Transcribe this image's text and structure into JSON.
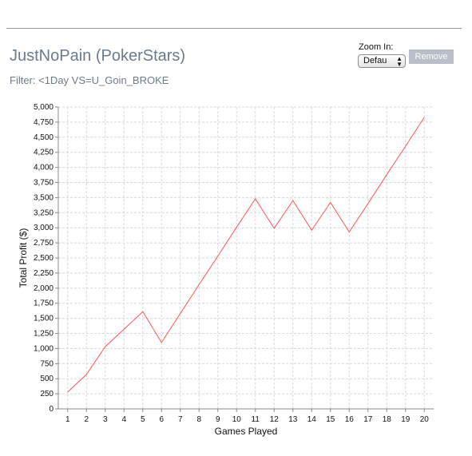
{
  "header": {
    "title": "JustNoPain (PokerStars)",
    "filter": "Filter: <1Day VS=U_Goin_BROKE"
  },
  "controls": {
    "zoom_label": "Zoom In:",
    "zoom_value": "Defau",
    "remove_label": "Remove"
  },
  "colors": {
    "line": "#ff5555",
    "grid": "#d8d8d8"
  },
  "chart_data": {
    "type": "line",
    "xlabel": "Games Played",
    "ylabel": "Total Profit ($)",
    "x": [
      1,
      2,
      3,
      4,
      5,
      6,
      7,
      8,
      9,
      10,
      11,
      12,
      13,
      14,
      15,
      16,
      17,
      18,
      19,
      20
    ],
    "series": [
      {
        "values": [
          280,
          570,
          1030,
          1320,
          1610,
          1100,
          1580,
          2060,
          2530,
          3010,
          3480,
          2990,
          3450,
          2960,
          3420,
          2930,
          3400,
          3880,
          4350,
          4830
        ]
      }
    ],
    "xlim": [
      0.5,
      20.5
    ],
    "ylim": [
      0,
      5000
    ],
    "y_ticks": [
      "0",
      "250",
      "500",
      "750",
      "1,000",
      "1,250",
      "1,500",
      "1,750",
      "2,000",
      "2,250",
      "2,500",
      "2,750",
      "3,000",
      "3,250",
      "3,500",
      "3,750",
      "4,000",
      "4,250",
      "4,500",
      "4,750",
      "5,000"
    ],
    "x_ticks": [
      "1",
      "2",
      "3",
      "4",
      "5",
      "6",
      "7",
      "8",
      "9",
      "10",
      "11",
      "12",
      "13",
      "14",
      "15",
      "16",
      "17",
      "18",
      "19",
      "20"
    ],
    "grid": true,
    "legend": "none"
  }
}
